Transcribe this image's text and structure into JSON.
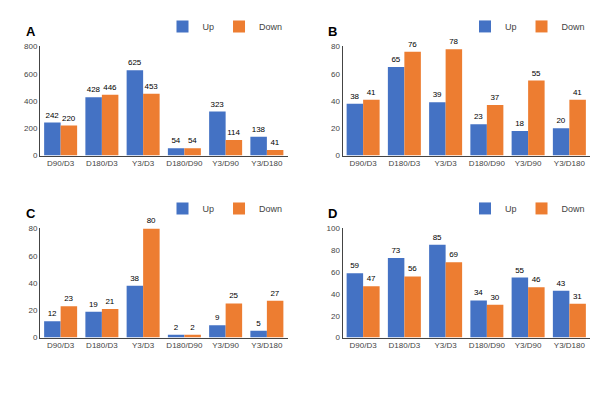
{
  "chart_data": [
    {
      "type": "bar",
      "title": "A",
      "categories": [
        "D90/D3",
        "D180/D3",
        "Y3/D3",
        "D180/D90",
        "Y3/D90",
        "Y3/D180"
      ],
      "series": [
        {
          "name": "Up",
          "color": "#4472C4",
          "values": [
            242,
            428,
            625,
            54,
            323,
            138
          ]
        },
        {
          "name": "Down",
          "color": "#ED7D31",
          "values": [
            220,
            446,
            453,
            54,
            114,
            41
          ]
        }
      ],
      "ylim": [
        0,
        800
      ],
      "yticks": [
        0,
        200,
        400,
        600,
        800
      ],
      "grid": false,
      "legend": "upper right",
      "data_labels": true
    },
    {
      "type": "bar",
      "title": "B",
      "categories": [
        "D90/D3",
        "D180/D3",
        "Y3/D3",
        "D180/D90",
        "Y3/D90",
        "Y3/D180"
      ],
      "series": [
        {
          "name": "Up",
          "color": "#4472C4",
          "values": [
            38,
            65,
            39,
            23,
            18,
            20
          ]
        },
        {
          "name": "Down",
          "color": "#ED7D31",
          "values": [
            41,
            76,
            78,
            37,
            55,
            41
          ]
        }
      ],
      "ylim": [
        0,
        80
      ],
      "yticks": [
        0,
        20,
        40,
        60,
        80
      ],
      "grid": false,
      "legend": "upper right",
      "data_labels": true
    },
    {
      "type": "bar",
      "title": "C",
      "categories": [
        "D90/D3",
        "D180/D3",
        "Y3/D3",
        "D180/D90",
        "Y3/D90",
        "Y3/D180"
      ],
      "series": [
        {
          "name": "Up",
          "color": "#4472C4",
          "values": [
            12,
            19,
            38,
            2,
            9,
            5
          ]
        },
        {
          "name": "Down",
          "color": "#ED7D31",
          "values": [
            23,
            21,
            80,
            2,
            25,
            27
          ]
        }
      ],
      "ylim": [
        0,
        80
      ],
      "yticks": [
        0,
        20,
        40,
        60,
        80
      ],
      "grid": false,
      "legend": "upper right",
      "data_labels": true
    },
    {
      "type": "bar",
      "title": "D",
      "categories": [
        "D90/D3",
        "D180/D3",
        "Y3/D3",
        "D180/D90",
        "Y3/D90",
        "Y3/D180"
      ],
      "series": [
        {
          "name": "Up",
          "color": "#4472C4",
          "values": [
            59,
            73,
            85,
            34,
            55,
            43
          ]
        },
        {
          "name": "Down",
          "color": "#ED7D31",
          "values": [
            47,
            56,
            69,
            30,
            46,
            31
          ]
        }
      ],
      "ylim": [
        0,
        100
      ],
      "yticks": [
        0,
        20,
        40,
        60,
        80,
        100
      ],
      "grid": false,
      "legend": "upper right",
      "data_labels": true
    }
  ]
}
